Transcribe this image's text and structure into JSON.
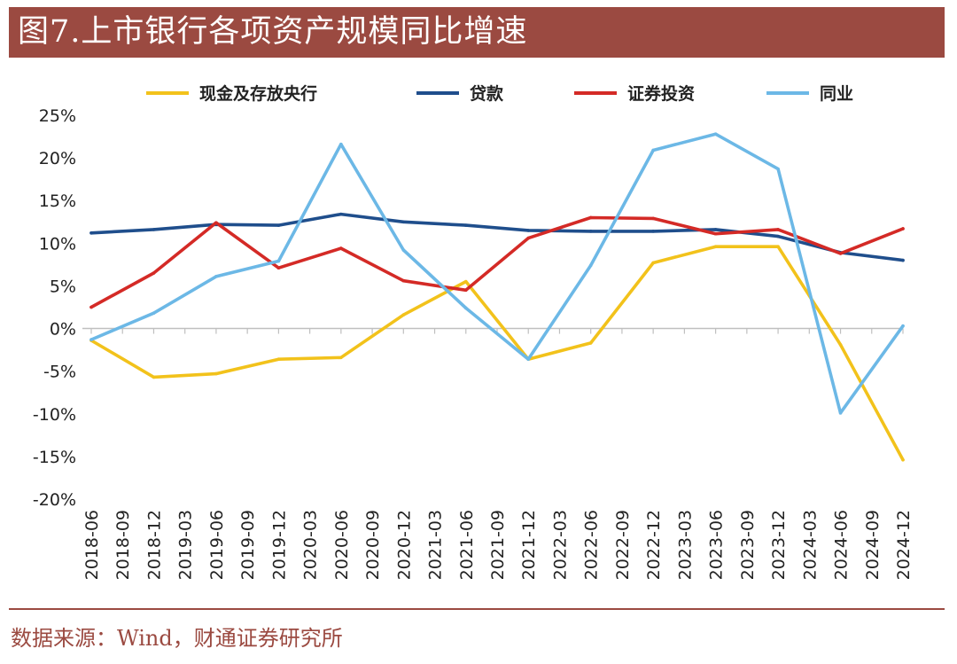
{
  "header": {
    "title": "图7.上市银行各项资产规模同比增速"
  },
  "footer": {
    "source": "数据来源：Wind，财通证券研究所"
  },
  "chart_data": {
    "type": "line",
    "title": "图7.上市银行各项资产规模同比增速",
    "xlabel": "",
    "ylabel": "",
    "ylim": [
      -20,
      25
    ],
    "yticks": [
      25,
      20,
      15,
      10,
      5,
      0,
      -5,
      -10,
      -15,
      -20
    ],
    "ytick_labels": [
      "25%",
      "20%",
      "15%",
      "10%",
      "5%",
      "0%",
      "-5%",
      "-10%",
      "-15%",
      "-20%"
    ],
    "legend_position": "top",
    "categories": [
      "2018-06",
      "2018-09",
      "2018-12",
      "2019-03",
      "2019-06",
      "2019-09",
      "2019-12",
      "2020-03",
      "2020-06",
      "2020-09",
      "2020-12",
      "2021-03",
      "2021-06",
      "2021-09",
      "2021-12",
      "2022-03",
      "2022-06",
      "2022-09",
      "2022-12",
      "2023-03",
      "2023-06",
      "2023-09",
      "2023-12",
      "2024-03",
      "2024-06",
      "2024-09",
      "2024-12"
    ],
    "series": [
      {
        "name": "现金及存放央行",
        "color": "#f2c21b",
        "x": [
          "2018-06",
          "2018-12",
          "2019-06",
          "2019-12",
          "2020-06",
          "2020-12",
          "2021-06",
          "2021-12",
          "2022-06",
          "2022-12",
          "2023-06",
          "2023-12",
          "2024-06",
          "2024-12"
        ],
        "values": [
          -1.4,
          -5.7,
          -5.3,
          -3.6,
          -3.4,
          1.6,
          5.5,
          -3.6,
          -1.7,
          7.7,
          9.6,
          9.6,
          -1.9,
          -15.4
        ]
      },
      {
        "name": "贷款",
        "color": "#1f4e8c",
        "x": [
          "2018-06",
          "2018-12",
          "2019-06",
          "2019-12",
          "2020-06",
          "2020-12",
          "2021-06",
          "2021-12",
          "2022-06",
          "2022-12",
          "2023-06",
          "2023-12",
          "2024-06",
          "2024-12"
        ],
        "values": [
          11.2,
          11.6,
          12.2,
          12.1,
          13.4,
          12.5,
          12.1,
          11.5,
          11.4,
          11.4,
          11.6,
          10.8,
          8.9,
          8.0
        ]
      },
      {
        "name": "证券投资",
        "color": "#d42a26",
        "x": [
          "2018-06",
          "2018-12",
          "2019-06",
          "2019-12",
          "2020-06",
          "2020-12",
          "2021-06",
          "2021-12",
          "2022-06",
          "2022-12",
          "2023-06",
          "2023-12",
          "2024-06",
          "2024-12"
        ],
        "values": [
          2.5,
          6.5,
          12.4,
          7.1,
          9.4,
          5.6,
          4.5,
          10.6,
          13.0,
          12.9,
          11.1,
          11.6,
          8.8,
          11.7
        ]
      },
      {
        "name": "同业",
        "color": "#6cb8e6",
        "x": [
          "2018-06",
          "2018-12",
          "2019-06",
          "2019-12",
          "2020-06",
          "2020-12",
          "2021-06",
          "2021-12",
          "2022-06",
          "2022-12",
          "2023-06",
          "2023-12",
          "2024-06",
          "2024-12"
        ],
        "values": [
          -1.3,
          1.8,
          6.1,
          7.9,
          21.6,
          9.2,
          2.4,
          -3.6,
          7.4,
          20.9,
          22.8,
          18.7,
          -9.9,
          0.3
        ]
      }
    ]
  }
}
